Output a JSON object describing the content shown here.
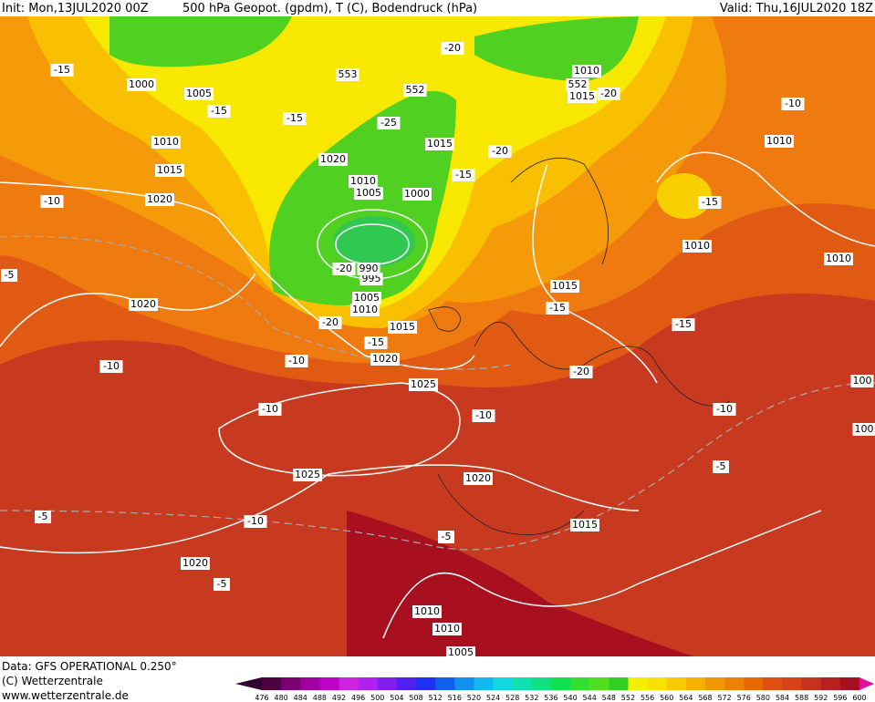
{
  "header": {
    "init": "Init: Mon,13JUL2020 00Z",
    "title": "500 hPa Geopot. (gpdm), T (C), Bodendruck (hPa)",
    "valid": "Valid: Thu,16JUL2020 18Z"
  },
  "footer": {
    "data": "Data: GFS OPERATIONAL 0.250°",
    "copyright": "(C) Wetterzentrale",
    "url": "www.wetterzentrale.de"
  },
  "colorbar": {
    "levels": [
      476,
      480,
      484,
      488,
      492,
      496,
      500,
      504,
      508,
      512,
      516,
      520,
      524,
      528,
      532,
      536,
      540,
      544,
      548,
      552,
      556,
      560,
      564,
      568,
      572,
      576,
      580,
      584,
      588,
      592,
      596,
      600
    ],
    "colors": [
      "#4b0040",
      "#7a0070",
      "#a000a0",
      "#c000c8",
      "#d020e0",
      "#b020f0",
      "#8020f0",
      "#5020f0",
      "#2030f0",
      "#1060f0",
      "#1090f0",
      "#10b8f0",
      "#10d8e0",
      "#10e0b0",
      "#10e080",
      "#10e050",
      "#30e030",
      "#50e020",
      "#30d020",
      "#f0f000",
      "#f8e000",
      "#f8c800",
      "#f8b000",
      "#f09800",
      "#f08000",
      "#e86800",
      "#e05010",
      "#d84018",
      "#c83020",
      "#b82020",
      "#a81020"
    ]
  },
  "map_labels": [
    "1000",
    "1005",
    "-15",
    "-15",
    "-15",
    "1010",
    "1015",
    "-10",
    "1020",
    "-5",
    "1020",
    "-10",
    "-10",
    "1025",
    "-10",
    "1020",
    "-15",
    "1015",
    "-20",
    "1010",
    "1005",
    "995",
    "990",
    "-20",
    "1000",
    "1005",
    "1010",
    "1020",
    "-25",
    "552",
    "553",
    "-20",
    "1015",
    "-20",
    "-15",
    "1010",
    "552",
    "1015",
    "-20",
    "-10",
    "1010",
    "-15",
    "1010",
    "1010",
    "1015",
    "-15",
    "-15",
    "-20",
    "100",
    "-10",
    "100",
    "-5",
    "-10",
    "1025",
    "1020",
    "-10",
    "-5",
    "-5",
    "1015",
    "1020",
    "-5",
    "1010",
    "1010",
    "1005"
  ]
}
